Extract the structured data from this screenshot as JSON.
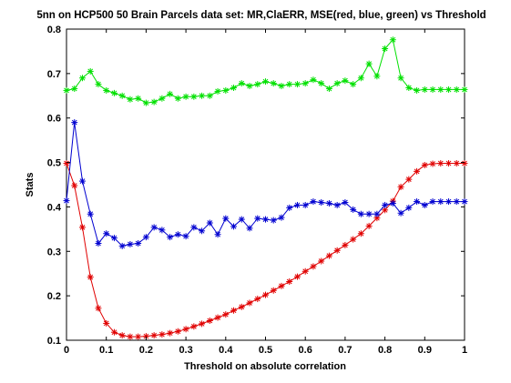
{
  "chart_data": {
    "type": "line",
    "title": "5nn on HCP500 50 Brain Parcels data set: MR,ClaERR, MSE(red, blue, green) vs Threshold",
    "xlabel": "Threshold on absolute correlation",
    "ylabel": "Stats",
    "xlim": [
      0,
      1
    ],
    "ylim": [
      0.1,
      0.8
    ],
    "xticks": [
      "0",
      "0.1",
      "0.2",
      "0.3",
      "0.4",
      "0.5",
      "0.6",
      "0.7",
      "0.8",
      "0.9",
      "1"
    ],
    "yticks": [
      "0.1",
      "0.2",
      "0.3",
      "0.4",
      "0.5",
      "0.6",
      "0.7",
      "0.8"
    ],
    "grid": false,
    "marker": "asterisk",
    "x": [
      0,
      0.02,
      0.04,
      0.06,
      0.08,
      0.1,
      0.12,
      0.14,
      0.16,
      0.18,
      0.2,
      0.22,
      0.24,
      0.26,
      0.28,
      0.3,
      0.32,
      0.34,
      0.36,
      0.38,
      0.4,
      0.42,
      0.44,
      0.46,
      0.48,
      0.5,
      0.52,
      0.54,
      0.56,
      0.58,
      0.6,
      0.62,
      0.64,
      0.66,
      0.68,
      0.7,
      0.72,
      0.74,
      0.76,
      0.78,
      0.8,
      0.82,
      0.84,
      0.86,
      0.88,
      0.9,
      0.92,
      0.94,
      0.96,
      0.98,
      1.0
    ],
    "series": [
      {
        "color": "#e00000",
        "values": [
          0.498,
          0.448,
          0.354,
          0.242,
          0.172,
          0.138,
          0.118,
          0.111,
          0.108,
          0.108,
          0.109,
          0.111,
          0.113,
          0.116,
          0.12,
          0.125,
          0.131,
          0.137,
          0.144,
          0.151,
          0.158,
          0.167,
          0.175,
          0.184,
          0.193,
          0.202,
          0.212,
          0.222,
          0.232,
          0.243,
          0.255,
          0.266,
          0.278,
          0.29,
          0.302,
          0.314,
          0.327,
          0.34,
          0.357,
          0.375,
          0.393,
          0.413,
          0.445,
          0.462,
          0.48,
          0.494,
          0.497,
          0.498,
          0.498,
          0.498,
          0.498
        ]
      },
      {
        "color": "#0000d0",
        "values": [
          0.414,
          0.59,
          0.458,
          0.384,
          0.318,
          0.34,
          0.33,
          0.312,
          0.316,
          0.318,
          0.332,
          0.354,
          0.348,
          0.332,
          0.338,
          0.334,
          0.354,
          0.346,
          0.364,
          0.338,
          0.374,
          0.356,
          0.372,
          0.352,
          0.374,
          0.372,
          0.37,
          0.376,
          0.398,
          0.404,
          0.404,
          0.412,
          0.41,
          0.408,
          0.404,
          0.41,
          0.394,
          0.384,
          0.384,
          0.384,
          0.404,
          0.408,
          0.386,
          0.398,
          0.412,
          0.404,
          0.412,
          0.412,
          0.412,
          0.412,
          0.412
        ]
      },
      {
        "color": "#00e000",
        "values": [
          0.662,
          0.666,
          0.69,
          0.705,
          0.676,
          0.662,
          0.656,
          0.65,
          0.642,
          0.644,
          0.634,
          0.636,
          0.644,
          0.654,
          0.644,
          0.648,
          0.648,
          0.65,
          0.65,
          0.66,
          0.662,
          0.668,
          0.678,
          0.672,
          0.676,
          0.682,
          0.678,
          0.672,
          0.676,
          0.676,
          0.678,
          0.686,
          0.678,
          0.666,
          0.678,
          0.684,
          0.676,
          0.69,
          0.722,
          0.694,
          0.756,
          0.776,
          0.69,
          0.668,
          0.662,
          0.664,
          0.664,
          0.664,
          0.664,
          0.664,
          0.664
        ]
      }
    ]
  }
}
